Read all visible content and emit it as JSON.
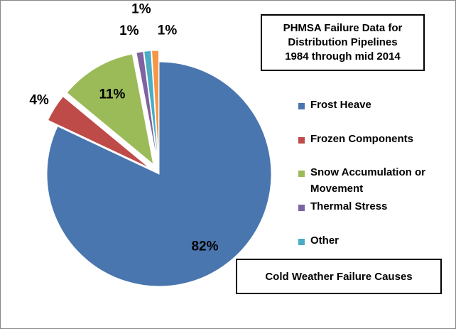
{
  "chart_data": {
    "type": "pie",
    "title": "PHMSA Failure Data for\nDistribution Pipelines\n1984 through mid 2014",
    "subtitle": "Cold Weather Failure Causes",
    "slices": [
      {
        "name": "Frost Heave",
        "value": 82,
        "label": "82%",
        "color": "#4A76AF",
        "exploded": false
      },
      {
        "name": "Frozen Components",
        "value": 4,
        "label": "4%",
        "color": "#BE4B48",
        "exploded": true
      },
      {
        "name": "Snow Accumulation or Movement",
        "value": 11,
        "label": "11%",
        "color": "#9BBB59",
        "exploded": true
      },
      {
        "name": "Thermal Stress",
        "value": 1,
        "label": "1%",
        "color": "#7F63A1",
        "exploded": true
      },
      {
        "name": "Other",
        "value": 1,
        "label": "1%",
        "color": "#4AACC5",
        "exploded": true
      },
      {
        "name": "",
        "value": 1,
        "label": "1%",
        "color": "#F79646",
        "exploded": true
      }
    ],
    "legend": {
      "placement": "right",
      "entries": [
        "Frost Heave",
        "Frozen Components",
        "Snow Accumulation or Movement",
        "Thermal Stress",
        "Other"
      ]
    }
  }
}
